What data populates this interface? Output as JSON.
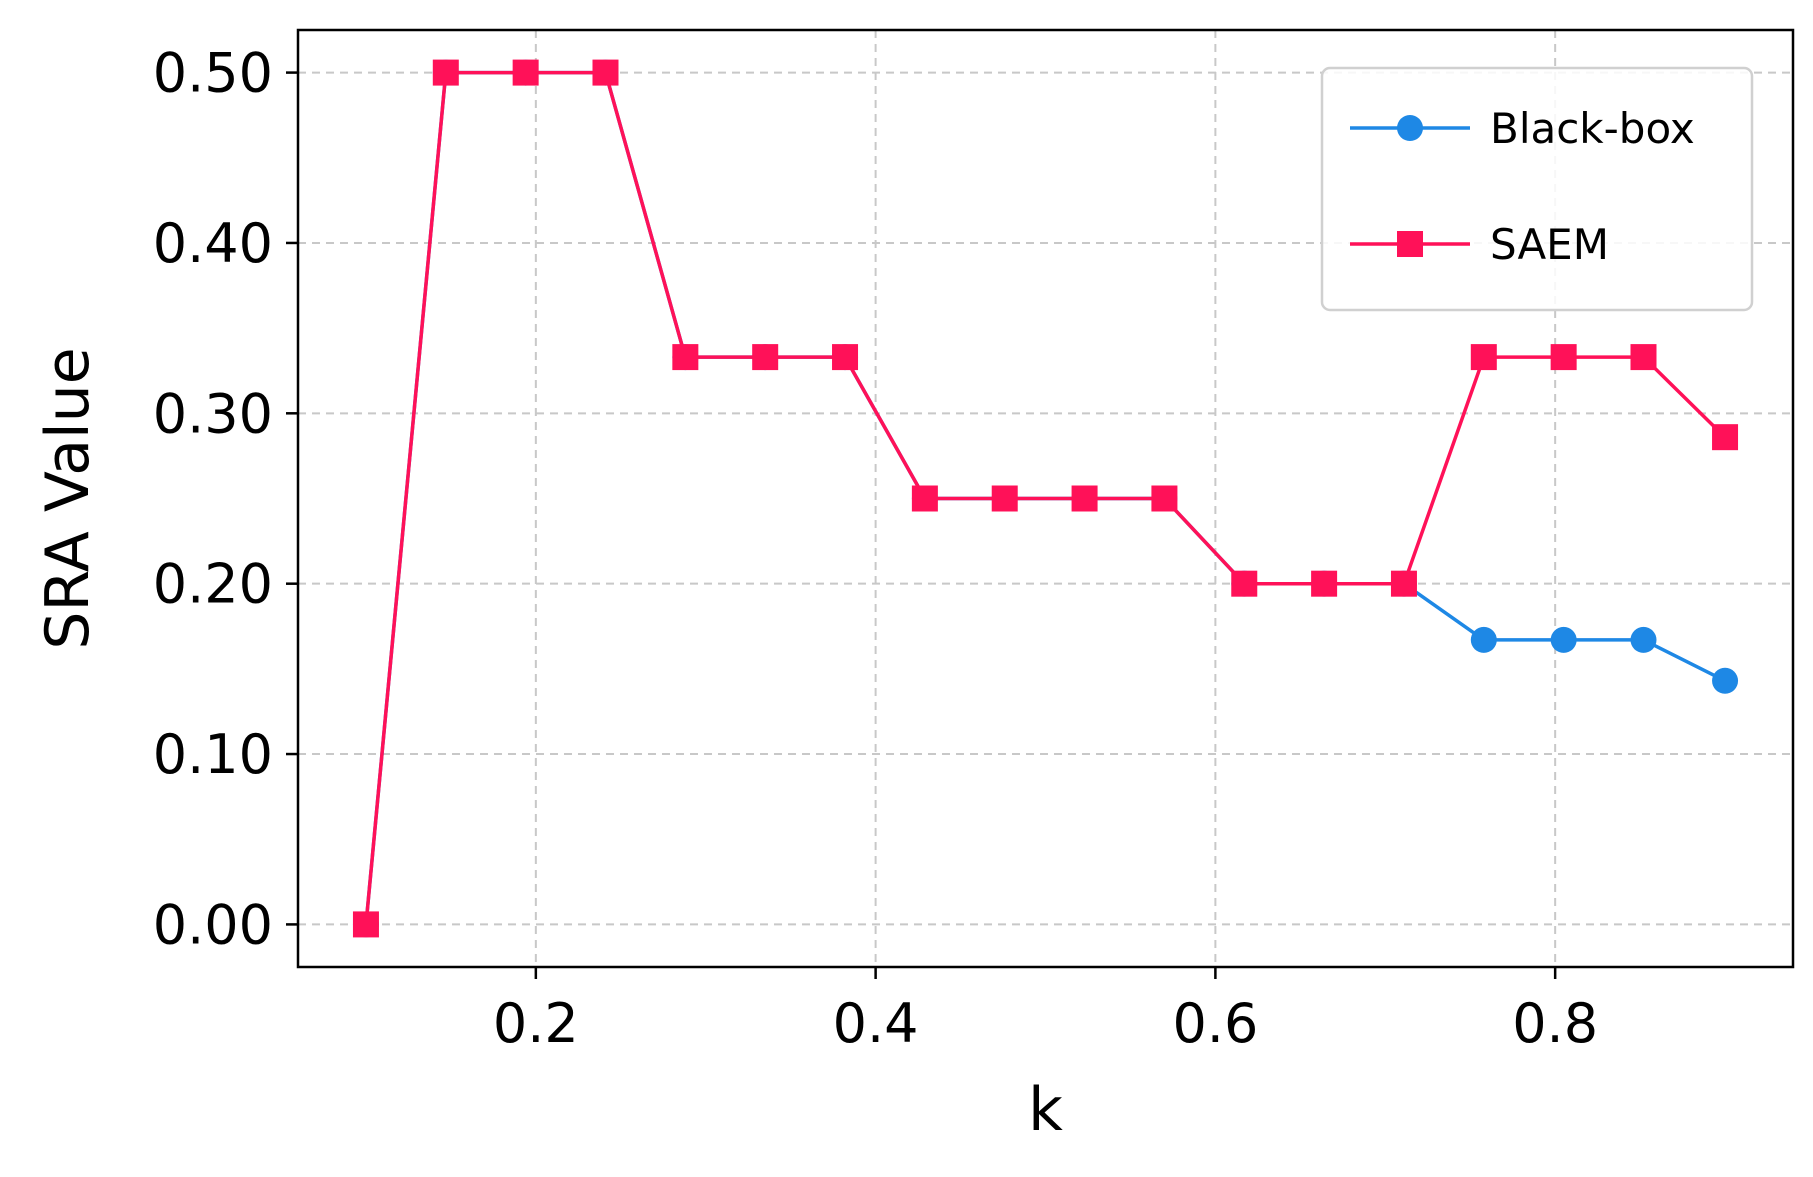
{
  "chart_data": {
    "type": "line",
    "xlabel": "k",
    "ylabel": "SRA Value",
    "xlim": [
      0.06,
      0.94
    ],
    "ylim": [
      -0.025,
      0.525
    ],
    "xticks": [
      0.2,
      0.4,
      0.6,
      0.8
    ],
    "xtick_labels": [
      "0.2",
      "0.4",
      "0.6",
      "0.8"
    ],
    "yticks": [
      0.0,
      0.1,
      0.2,
      0.3,
      0.4,
      0.5
    ],
    "ytick_labels": [
      "0.00",
      "0.10",
      "0.20",
      "0.30",
      "0.40",
      "0.50"
    ],
    "grid": true,
    "legend_position": "top-right",
    "x": [
      0.1,
      0.147,
      0.194,
      0.241,
      0.288,
      0.335,
      0.382,
      0.429,
      0.476,
      0.523,
      0.57,
      0.617,
      0.664,
      0.711,
      0.758,
      0.805,
      0.852,
      0.9
    ],
    "series": [
      {
        "name": "Black-box",
        "color": "#1e88e5",
        "marker": "circle",
        "values": [
          0.0,
          0.5,
          0.5,
          0.5,
          0.333,
          0.333,
          0.333,
          0.25,
          0.25,
          0.25,
          0.25,
          0.2,
          0.2,
          0.2,
          0.167,
          0.167,
          0.167,
          0.143
        ]
      },
      {
        "name": "SAEM",
        "color": "#ff1158",
        "marker": "square",
        "values": [
          0.0,
          0.5,
          0.5,
          0.5,
          0.333,
          0.333,
          0.333,
          0.25,
          0.25,
          0.25,
          0.25,
          0.2,
          0.2,
          0.2,
          0.333,
          0.333,
          0.333,
          0.286
        ]
      }
    ]
  }
}
